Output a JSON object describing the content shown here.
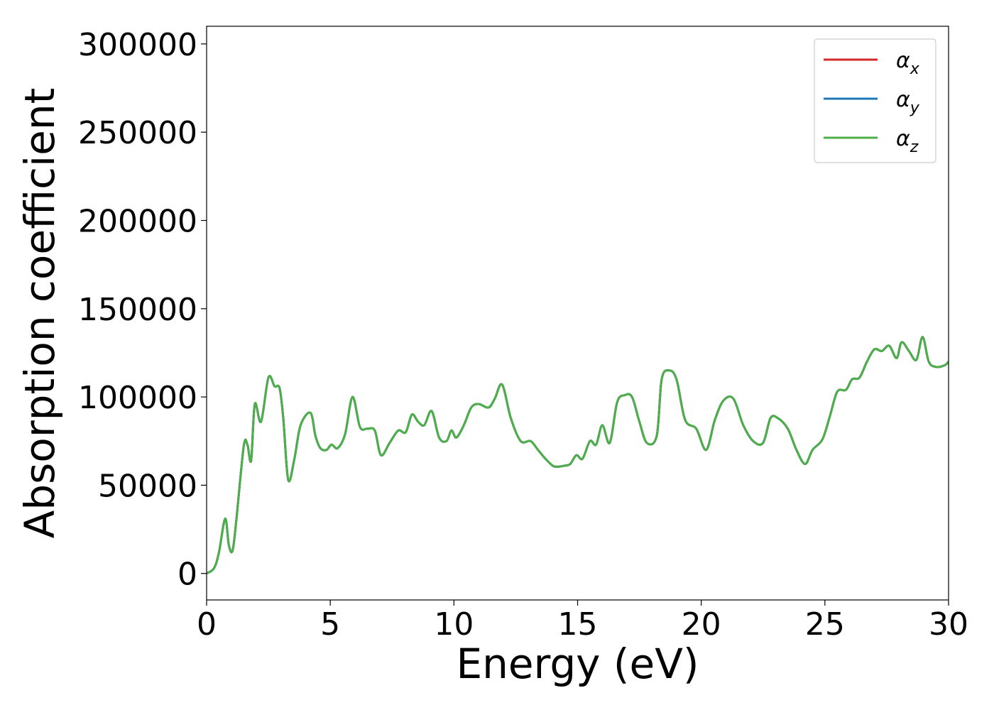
{
  "chart_data": {
    "type": "line",
    "xlabel": "Energy (eV)",
    "ylabel": "Absorption coefficient",
    "xlim": [
      0,
      30
    ],
    "ylim": [
      -15000,
      310000
    ],
    "xticks": [
      0,
      5,
      10,
      15,
      20,
      25,
      30
    ],
    "yticks": [
      0,
      50000,
      100000,
      150000,
      200000,
      250000,
      300000
    ],
    "xtick_labels": [
      "0",
      "5",
      "10",
      "15",
      "20",
      "25",
      "30"
    ],
    "ytick_labels": [
      "0",
      "50000",
      "100000",
      "150000",
      "200000",
      "250000",
      "300000"
    ],
    "grid": false,
    "legend_position": "top-right",
    "x": [
      0,
      0.3,
      0.5,
      0.75,
      0.9,
      1.05,
      1.2,
      1.5,
      1.65,
      1.8,
      1.95,
      2.2,
      2.5,
      2.75,
      2.95,
      3.1,
      3.3,
      3.55,
      3.8,
      4.2,
      4.4,
      4.6,
      4.85,
      5.05,
      5.3,
      5.6,
      5.9,
      6.2,
      6.5,
      6.8,
      7.05,
      7.4,
      7.75,
      8.05,
      8.3,
      8.55,
      8.8,
      9.1,
      9.4,
      9.7,
      9.9,
      10.1,
      10.4,
      10.7,
      11.0,
      11.4,
      11.65,
      11.95,
      12.3,
      12.7,
      13.1,
      13.4,
      13.7,
      14.0,
      14.2,
      14.45,
      14.7,
      14.95,
      15.2,
      15.5,
      15.75,
      16.0,
      16.3,
      16.6,
      16.9,
      17.2,
      17.5,
      17.8,
      18.2,
      18.4,
      18.7,
      19.0,
      19.35,
      19.8,
      20.2,
      20.55,
      20.9,
      21.3,
      21.7,
      22.1,
      22.5,
      22.8,
      23.1,
      23.5,
      23.85,
      24.2,
      24.5,
      24.9,
      25.2,
      25.5,
      25.85,
      26.1,
      26.4,
      26.7,
      27.0,
      27.3,
      27.6,
      27.9,
      28.1,
      28.4,
      28.7,
      28.95,
      29.2,
      29.5,
      29.85,
      30.0
    ],
    "series": [
      {
        "name": "αx",
        "label_base": "α",
        "label_sub": "x",
        "color": "#d62728",
        "y": [
          0,
          3000,
          12000,
          31000,
          16000,
          13000,
          30000,
          72000,
          73000,
          64000,
          96000,
          86000,
          111000,
          106000,
          105000,
          88000,
          53000,
          65000,
          84000,
          91000,
          78000,
          71000,
          70000,
          73000,
          71000,
          79000,
          100000,
          83000,
          82000,
          81000,
          67000,
          74000,
          81000,
          80000,
          90000,
          86000,
          84000,
          92000,
          77000,
          75000,
          81000,
          77000,
          84000,
          94000,
          96000,
          94000,
          99000,
          107000,
          88000,
          75000,
          75000,
          70000,
          65000,
          61000,
          60500,
          61000,
          62000,
          67000,
          65000,
          75000,
          73000,
          84000,
          74000,
          97000,
          101000,
          100000,
          86000,
          74000,
          78000,
          110000,
          115000,
          110000,
          87000,
          82000,
          70000,
          87000,
          98000,
          99000,
          84000,
          75000,
          74000,
          88000,
          88000,
          82000,
          70000,
          62000,
          70000,
          76000,
          89000,
          103000,
          104000,
          110000,
          111000,
          120000,
          127000,
          126000,
          129000,
          122000,
          131000,
          126000,
          121000,
          134000,
          120000,
          117000,
          118000,
          120000
        ]
      },
      {
        "name": "αy",
        "label_base": "α",
        "label_sub": "y",
        "color": "#1f77b4",
        "y": [
          0,
          3000,
          12000,
          31000,
          16000,
          13000,
          30000,
          72000,
          73000,
          64000,
          96000,
          86000,
          111000,
          106000,
          105000,
          88000,
          53000,
          65000,
          84000,
          91000,
          78000,
          71000,
          70000,
          73000,
          71000,
          79000,
          100000,
          83000,
          82000,
          81000,
          67000,
          74000,
          81000,
          80000,
          90000,
          86000,
          84000,
          92000,
          77000,
          75000,
          81000,
          77000,
          84000,
          94000,
          96000,
          94000,
          99000,
          107000,
          88000,
          75000,
          75000,
          70000,
          65000,
          61000,
          60500,
          61000,
          62000,
          67000,
          65000,
          75000,
          73000,
          84000,
          74000,
          97000,
          101000,
          100000,
          86000,
          74000,
          78000,
          110000,
          115000,
          110000,
          87000,
          82000,
          70000,
          87000,
          98000,
          99000,
          84000,
          75000,
          74000,
          88000,
          88000,
          82000,
          70000,
          62000,
          70000,
          76000,
          89000,
          103000,
          104000,
          110000,
          111000,
          120000,
          127000,
          126000,
          129000,
          122000,
          131000,
          126000,
          121000,
          134000,
          120000,
          117000,
          118000,
          120000
        ]
      },
      {
        "name": "αz",
        "label_base": "α",
        "label_sub": "z",
        "color": "#4daf4a",
        "y": [
          0,
          3000,
          12000,
          31000,
          16000,
          13000,
          30000,
          72000,
          73000,
          64000,
          96000,
          86000,
          111000,
          106000,
          105000,
          88000,
          53000,
          65000,
          84000,
          91000,
          78000,
          71000,
          70000,
          73000,
          71000,
          79000,
          100000,
          83000,
          82000,
          81000,
          67000,
          74000,
          81000,
          80000,
          90000,
          86000,
          84000,
          92000,
          77000,
          75000,
          81000,
          77000,
          84000,
          94000,
          96000,
          94000,
          99000,
          107000,
          88000,
          75000,
          75000,
          70000,
          65000,
          61000,
          60500,
          61000,
          62000,
          67000,
          65000,
          75000,
          73000,
          84000,
          74000,
          97000,
          101000,
          100000,
          86000,
          74000,
          78000,
          110000,
          115000,
          110000,
          87000,
          82000,
          70000,
          87000,
          98000,
          99000,
          84000,
          75000,
          74000,
          88000,
          88000,
          82000,
          70000,
          62000,
          70000,
          76000,
          89000,
          103000,
          104000,
          110000,
          111000,
          120000,
          127000,
          126000,
          129000,
          122000,
          131000,
          126000,
          121000,
          134000,
          120000,
          117000,
          118000,
          120000
        ]
      }
    ]
  }
}
